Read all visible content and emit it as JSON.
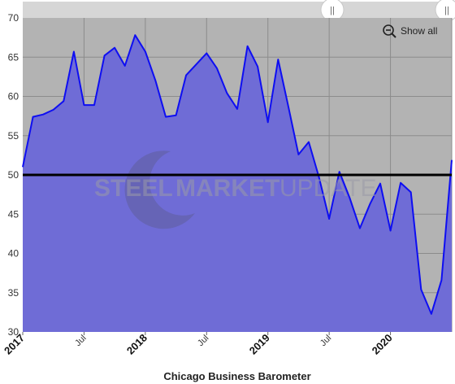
{
  "chart_data": {
    "type": "area",
    "title": "Chicago Business Barometer",
    "ylim": [
      30,
      70
    ],
    "yticks": [
      30,
      35,
      40,
      45,
      50,
      55,
      60,
      65,
      70
    ],
    "xticks": [
      {
        "label": "2017",
        "month": 0,
        "major": true
      },
      {
        "label": "Jul",
        "month": 6,
        "major": false
      },
      {
        "label": "2018",
        "month": 12,
        "major": true
      },
      {
        "label": "Jul",
        "month": 18,
        "major": false
      },
      {
        "label": "2019",
        "month": 24,
        "major": true
      },
      {
        "label": "Jul",
        "month": 30,
        "major": false
      },
      {
        "label": "2020",
        "month": 36,
        "major": true
      },
      {
        "label": "",
        "month": 42,
        "major": false
      }
    ],
    "reference_line": 50,
    "grid": true,
    "series": [
      {
        "values": [
          51.0,
          57.4,
          57.7,
          58.3,
          59.4,
          65.7,
          58.9,
          58.9,
          65.2,
          66.2,
          63.9,
          67.8,
          65.7,
          62.0,
          57.4,
          57.6,
          62.7,
          64.1,
          65.5,
          63.6,
          60.4,
          58.4,
          66.4,
          63.8,
          56.7,
          64.7,
          58.7,
          52.6,
          54.2,
          49.7,
          44.4,
          50.4,
          47.1,
          43.2,
          46.3,
          48.9,
          42.9,
          49.0,
          47.8,
          35.4,
          32.3,
          36.6,
          51.9
        ]
      }
    ],
    "colors": {
      "plot_bg": "#b3b3b3",
      "area_fill": "#6f6cd6",
      "line": "#0e0ef2",
      "reference": "#000000",
      "grid": "#8c8c8c"
    }
  },
  "navigator": {
    "handle_left": "||",
    "handle_right": "||"
  },
  "controls": {
    "show_all_label": "Show all",
    "zoom_out_icon": "zoom-out-icon"
  },
  "watermark": {
    "word1": "STEEL",
    "word2": "MARKET",
    "word3": "UPDATE"
  }
}
